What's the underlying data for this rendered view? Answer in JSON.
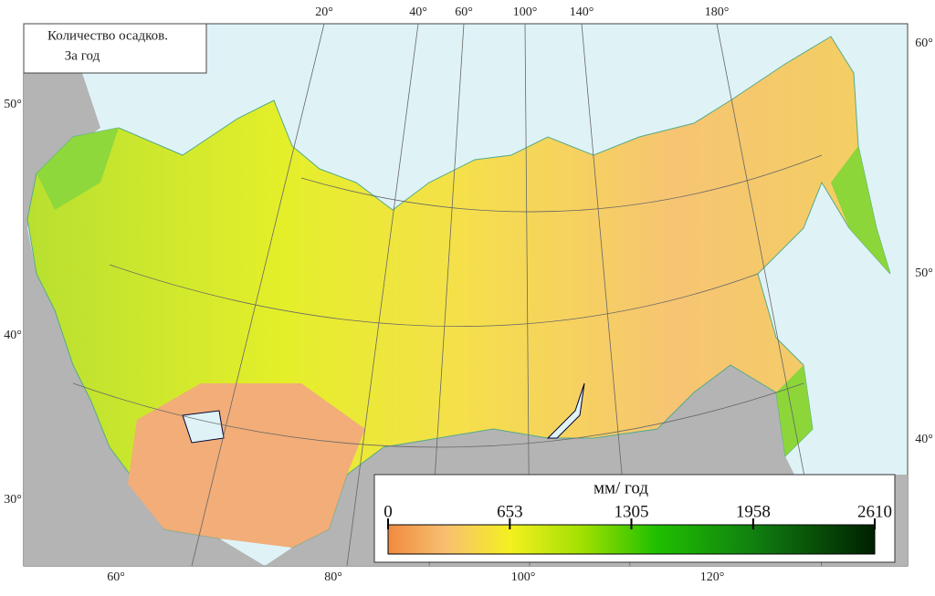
{
  "title": [
    "Количество осадков.",
    "За год"
  ],
  "legend": {
    "unit": "мм/ год",
    "ticks": [
      0,
      653,
      1305,
      1958,
      2610
    ]
  },
  "labels": {
    "top": [
      "20°",
      "40°",
      "60°",
      "100°",
      "140°",
      "180°"
    ],
    "left": [
      "50°",
      "40°",
      "30°"
    ],
    "right": [
      "60°",
      "50°",
      "40°"
    ],
    "bottom": [
      "60°",
      "80°",
      "100°",
      "120°"
    ]
  }
}
